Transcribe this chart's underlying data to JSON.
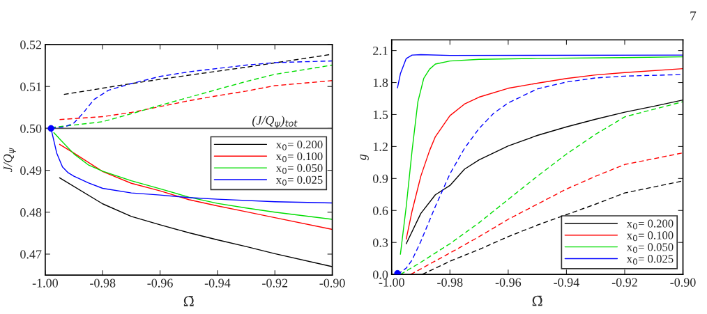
{
  "chart_data": [
    {
      "type": "line",
      "xlabel": "Ω̄",
      "ylabel": "J/Q$_{ψ}$",
      "xlim": [
        -1.0,
        -0.9
      ],
      "ylim": [
        0.465,
        0.52
      ],
      "xticks": [
        {
          "value": -1.0,
          "label": "-1.00"
        },
        {
          "value": -0.98,
          "label": "-0.98"
        },
        {
          "value": -0.96,
          "label": "-0.96"
        },
        {
          "value": -0.94,
          "label": "-0.94"
        },
        {
          "value": -0.92,
          "label": "-0.92"
        },
        {
          "value": -0.9,
          "label": "-0.90"
        }
      ],
      "yticks": [
        0.47,
        0.48,
        0.49,
        {
          "value": 0.5,
          "label": "0.50"
        },
        0.51,
        0.52
      ],
      "legend": "right",
      "grid": false,
      "ref_lines": [
        {
          "axis": "y",
          "value": 0.5,
          "label": "(J/Q$_{ψ}$)$_{tot}$",
          "color": "#555555",
          "line_style": "solid"
        }
      ],
      "series": [
        {
          "name": "x$_{0}$= 0.200",
          "color": "#000000",
          "x": [
            -0.995,
            -0.98,
            -0.97,
            -0.96,
            -0.95,
            -0.94,
            -0.93,
            -0.92,
            -0.9
          ],
          "values": [
            0.4882,
            0.482,
            0.479,
            0.477,
            0.4751,
            0.4734,
            0.4718,
            0.4701,
            0.467
          ]
        },
        {
          "name": "x$_{0}$= 0.100",
          "color": "#ff0000",
          "x": [
            -0.995,
            -0.99,
            -0.985,
            -0.98,
            -0.97,
            -0.96,
            -0.95,
            -0.94,
            -0.93,
            -0.92,
            -0.9
          ],
          "values": [
            0.4962,
            0.4941,
            0.4919,
            0.4897,
            0.4869,
            0.4851,
            0.483,
            0.4815,
            0.4801,
            0.4787,
            0.4759
          ]
        },
        {
          "name": "x$_{0}$= 0.050",
          "color": "#00dd00",
          "x": [
            -0.997,
            -0.995,
            -0.99,
            -0.985,
            -0.98,
            -0.97,
            -0.96,
            -0.95,
            -0.94,
            -0.93,
            -0.92,
            -0.9
          ],
          "values": [
            0.499,
            0.4975,
            0.4939,
            0.4913,
            0.4898,
            0.4875,
            0.4856,
            0.4836,
            0.4821,
            0.481,
            0.48,
            0.4783
          ]
        },
        {
          "name": "x$_{0}$= 0.025",
          "color": "#0000ff",
          "x": [
            -0.998,
            -0.996,
            -0.994,
            -0.992,
            -0.99,
            -0.985,
            -0.98,
            -0.97,
            -0.96,
            -0.95,
            -0.94,
            -0.92,
            -0.9
          ],
          "values": [
            0.5,
            0.4941,
            0.4908,
            0.4894,
            0.4886,
            0.487,
            0.4857,
            0.4846,
            0.4841,
            0.4835,
            0.4831,
            0.4825,
            0.4822
          ]
        },
        {
          "color": "#000000",
          "line_style": "dashed",
          "x": [
            -0.9935,
            -0.97,
            -0.95,
            -0.93,
            -0.9
          ],
          "values": [
            0.5081,
            0.5107,
            0.5127,
            0.5146,
            0.5177
          ]
        },
        {
          "color": "#ff0000",
          "line_style": "dashed",
          "x": [
            -0.995,
            -0.98,
            -0.97,
            -0.96,
            -0.95,
            -0.94,
            -0.93,
            -0.92,
            -0.9
          ],
          "values": [
            0.5021,
            0.5028,
            0.5038,
            0.5052,
            0.5066,
            0.5078,
            0.5089,
            0.5102,
            0.5114
          ]
        },
        {
          "color": "#00dd00",
          "line_style": "dashed",
          "x": [
            -0.998,
            -0.99,
            -0.98,
            -0.97,
            -0.96,
            -0.95,
            -0.94,
            -0.93,
            -0.92,
            -0.9
          ],
          "values": [
            0.5002,
            0.5008,
            0.5016,
            0.5035,
            0.5055,
            0.5074,
            0.5093,
            0.5112,
            0.5129,
            0.5151
          ]
        },
        {
          "color": "#0000ff",
          "line_style": "dashed",
          "x": [
            -0.998,
            -0.993,
            -0.99,
            -0.987,
            -0.983,
            -0.978,
            -0.97,
            -0.96,
            -0.95,
            -0.94,
            -0.93,
            -0.92,
            -0.9
          ],
          "values": [
            0.5,
            0.5004,
            0.5013,
            0.5035,
            0.5069,
            0.5091,
            0.5107,
            0.5124,
            0.5135,
            0.5143,
            0.5151,
            0.5157,
            0.5161
          ]
        },
        {
          "type": "scatter",
          "marker": "circle",
          "color": "#0000ff",
          "x": [
            -0.998
          ],
          "values": [
            0.5
          ]
        }
      ]
    },
    {
      "type": "line",
      "xlabel": "Ω̄",
      "ylabel": "g",
      "xlim": [
        -1.0,
        -0.9
      ],
      "ylim": [
        0.0,
        2.2
      ],
      "xticks": [
        {
          "value": -1.0,
          "label": "-1.00"
        },
        {
          "value": -0.98,
          "label": "-0.98"
        },
        {
          "value": -0.96,
          "label": "-0.96"
        },
        {
          "value": -0.94,
          "label": "-0.94"
        },
        {
          "value": -0.92,
          "label": "-0.92"
        },
        {
          "value": -0.9,
          "label": "-0.90"
        }
      ],
      "yticks": [
        {
          "value": 0.0,
          "label": "0.0"
        },
        0.3,
        0.6,
        0.9,
        1.2,
        1.5,
        1.8,
        2.1
      ],
      "legend": "bottom right",
      "grid": false,
      "annotations": [
        "7"
      ],
      "series": [
        {
          "name": "x$_{0}$= 0.200",
          "color": "#000000",
          "x": [
            -0.995,
            -0.99,
            -0.985,
            -0.98,
            -0.975,
            -0.97,
            -0.96,
            -0.95,
            -0.94,
            -0.93,
            -0.92,
            -0.91,
            -0.9
          ],
          "values": [
            0.288,
            0.572,
            0.747,
            0.834,
            0.987,
            1.074,
            1.205,
            1.304,
            1.384,
            1.456,
            1.522,
            1.577,
            1.636
          ]
        },
        {
          "name": "x$_{0}$= 0.100",
          "color": "#ff0000",
          "x": [
            -0.995,
            -0.993,
            -0.99,
            -0.987,
            -0.985,
            -0.98,
            -0.975,
            -0.97,
            -0.96,
            -0.95,
            -0.94,
            -0.93,
            -0.92,
            -0.9
          ],
          "values": [
            0.332,
            0.594,
            0.921,
            1.161,
            1.292,
            1.489,
            1.598,
            1.663,
            1.746,
            1.794,
            1.838,
            1.871,
            1.893,
            1.93
          ]
        },
        {
          "name": "x$_{0}$= 0.050",
          "color": "#00dd00",
          "x": [
            -0.997,
            -0.995,
            -0.993,
            -0.991,
            -0.989,
            -0.987,
            -0.985,
            -0.98,
            -0.97,
            -0.95,
            -0.92,
            -0.9
          ],
          "values": [
            0.19,
            0.638,
            1.161,
            1.62,
            1.838,
            1.925,
            1.973,
            2.002,
            2.017,
            2.026,
            2.034,
            2.041
          ]
        },
        {
          "name": "x$_{0}$= 0.025",
          "color": "#0000ff",
          "x": [
            -0.998,
            -0.997,
            -0.995,
            -0.993,
            -0.99,
            -0.98,
            -0.9
          ],
          "values": [
            1.75,
            1.883,
            2.025,
            2.057,
            2.061,
            2.054,
            2.057
          ]
        },
        {
          "color": "#000000",
          "line_style": "dashed",
          "x": [
            -0.9895,
            -0.98,
            -0.97,
            -0.96,
            -0.95,
            -0.94,
            -0.93,
            -0.92,
            -0.9
          ],
          "values": [
            0.0,
            0.124,
            0.234,
            0.354,
            0.463,
            0.561,
            0.659,
            0.764,
            0.877
          ]
        },
        {
          "color": "#ff0000",
          "line_style": "dashed",
          "x": [
            -0.9935,
            -0.98,
            -0.97,
            -0.96,
            -0.95,
            -0.94,
            -0.93,
            -0.92,
            -0.9
          ],
          "values": [
            0.0,
            0.201,
            0.354,
            0.517,
            0.659,
            0.801,
            0.921,
            1.031,
            1.14
          ]
        },
        {
          "color": "#00dd00",
          "line_style": "dashed",
          "x": [
            -0.997,
            -0.99,
            -0.98,
            -0.97,
            -0.96,
            -0.95,
            -0.94,
            -0.93,
            -0.92,
            -0.9
          ],
          "values": [
            0.0,
            0.114,
            0.288,
            0.485,
            0.703,
            0.921,
            1.129,
            1.314,
            1.478,
            1.62
          ]
        },
        {
          "color": "#0000ff",
          "line_style": "dashed",
          "x": [
            -0.998,
            -0.995,
            -0.993,
            -0.99,
            -0.987,
            -0.985,
            -0.98,
            -0.975,
            -0.97,
            -0.965,
            -0.96,
            -0.95,
            -0.94,
            -0.93,
            -0.92,
            -0.9
          ],
          "values": [
            0.0,
            0.059,
            0.135,
            0.31,
            0.507,
            0.638,
            0.943,
            1.183,
            1.369,
            1.511,
            1.609,
            1.74,
            1.805,
            1.843,
            1.86,
            1.875
          ]
        },
        {
          "type": "scatter",
          "marker": "circle",
          "color": "#0000ff",
          "x": [
            -0.998
          ],
          "values": [
            0.01
          ]
        }
      ]
    }
  ]
}
